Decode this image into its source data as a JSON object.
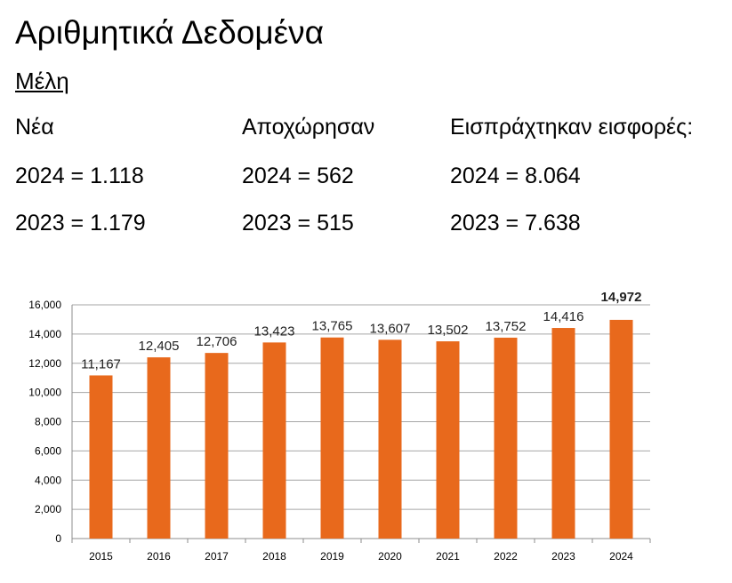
{
  "title": "Αριθμητικά Δεδομένα",
  "subtitle": "Μέλη",
  "stats": [
    {
      "header": "Νέα",
      "rows": [
        "2024 = 1.118",
        "2023 = 1.179"
      ]
    },
    {
      "header": "Αποχώρησαν",
      "rows": [
        "2024 = 562",
        "2023 = 515"
      ]
    },
    {
      "header": "Εισπράχτηκαν εισφορές:",
      "rows": [
        "2024 = 8.064",
        "2023 = 7.638"
      ]
    }
  ],
  "chart_data": {
    "type": "bar",
    "categories": [
      "2015",
      "2016",
      "2017",
      "2018",
      "2019",
      "2020",
      "2021",
      "2022",
      "2023",
      "2024"
    ],
    "values": [
      11167,
      12405,
      12706,
      13423,
      13765,
      13607,
      13502,
      13752,
      14416,
      14972
    ],
    "data_labels": [
      "11,167",
      "12,405",
      "12,706",
      "13,423",
      "13,765",
      "13,607",
      "13,502",
      "13,752",
      "14,416",
      "14,972"
    ],
    "y_ticks": [
      "0",
      "2,000",
      "4,000",
      "6,000",
      "8,000",
      "10,000",
      "12,000",
      "14,000",
      "16,000"
    ],
    "ylim": [
      0,
      16000
    ],
    "bar_color": "#E8691C",
    "grid": true,
    "highlight_last_label": true
  }
}
